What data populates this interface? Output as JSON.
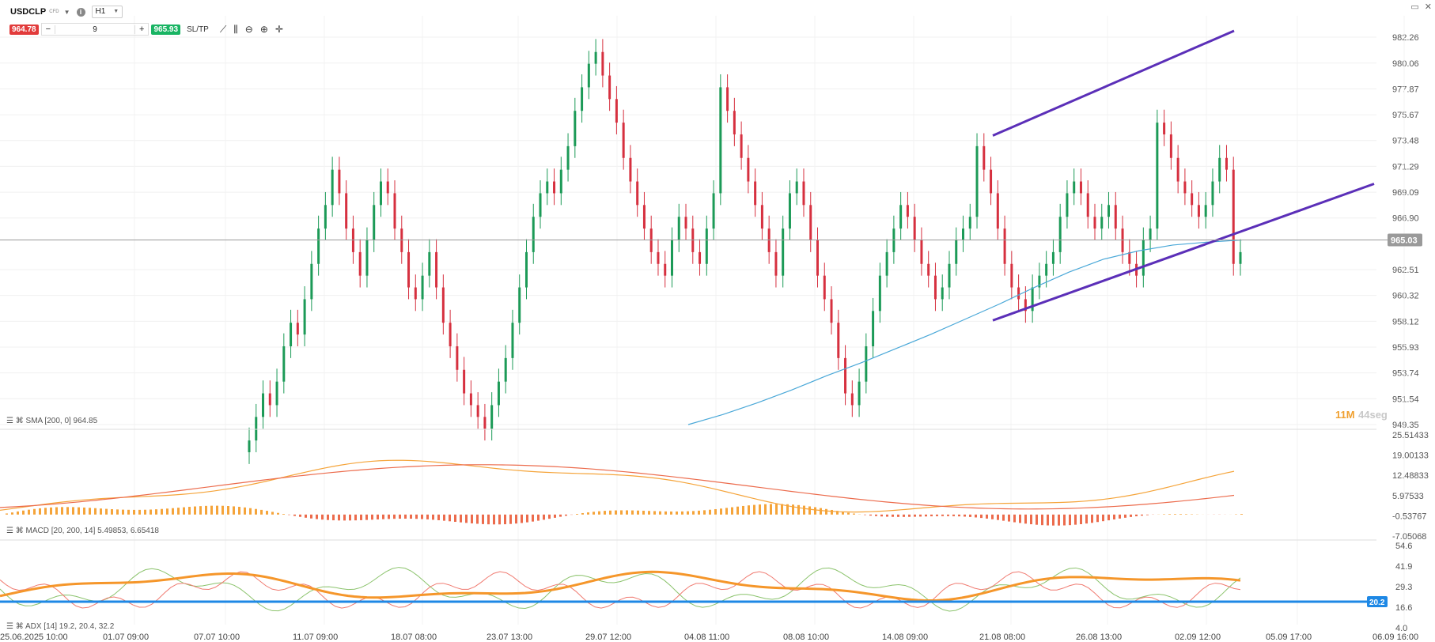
{
  "toolbar": {
    "symbol": "USDCLP",
    "badge": "CFD",
    "timeframe": "H1",
    "sell_price": "964.78",
    "quantity": "9",
    "buy_price": "965.93",
    "sltp_label": "SL/TP",
    "minus": "−",
    "plus": "+",
    "icons": [
      "info-icon",
      "line-chart-icon",
      "candles-icon",
      "zoom-out-icon",
      "zoom-in-icon",
      "crosshair-icon"
    ]
  },
  "window": {
    "minimize": "▭",
    "close": "✕"
  },
  "price_axis": {
    "labels": [
      "982.26",
      "980.06",
      "977.87",
      "975.67",
      "973.48",
      "971.29",
      "969.09",
      "966.90",
      "962.51",
      "960.32",
      "958.12",
      "955.93",
      "953.74",
      "951.54",
      "949.35"
    ],
    "values": [
      982.26,
      980.06,
      977.87,
      975.67,
      973.48,
      971.29,
      969.09,
      966.9,
      962.51,
      960.32,
      958.12,
      955.93,
      953.74,
      951.54,
      949.35
    ],
    "current_price": "965.03",
    "current_value": 965.03
  },
  "countdown": {
    "minutes": "11M",
    "seconds": "44seg"
  },
  "sma_label": "SMA [200, 0] 964.85",
  "macd": {
    "label": "MACD [20, 200, 14] 5.49853, 6.65418",
    "axis_labels": [
      "25.51433",
      "19.00133",
      "12.48833",
      "5.97533",
      "-0.53767",
      "-7.05068"
    ]
  },
  "adx": {
    "label": "ADX [14] 19.2, 20.4, 32.2",
    "axis_labels": [
      "54.6",
      "41.9",
      "29.3",
      "16.6",
      "4.0"
    ],
    "level_badge": "20.2"
  },
  "time_axis": [
    "25.06.2025 10:00",
    "01.07 09:00",
    "07.07 10:00",
    "11.07 09:00",
    "18.07 08:00",
    "23.07 13:00",
    "29.07 12:00",
    "04.08 11:00",
    "08.08 10:00",
    "14.08 09:00",
    "21.08 08:00",
    "26.08 13:00",
    "02.09 12:00",
    "05.09 17:00",
    "06.09 16:00"
  ],
  "chart_data": {
    "type": "candlestick",
    "series": [
      {
        "name": "USDCLP H1",
        "closes": [
          948,
          950,
          952,
          951,
          953,
          956,
          958,
          957,
          960,
          963,
          966,
          968,
          971,
          969,
          966,
          964,
          962,
          965,
          968,
          970,
          969,
          966,
          964,
          961,
          960,
          962,
          964,
          961,
          958,
          956,
          954,
          952,
          951,
          950,
          949,
          951,
          953,
          955,
          958,
          961,
          964,
          967,
          969,
          970,
          969,
          971,
          973,
          976,
          978,
          980,
          981,
          979,
          977,
          975,
          972,
          970,
          968,
          966,
          964,
          963,
          962,
          965,
          967,
          966,
          964,
          963,
          966,
          969,
          978,
          976,
          974,
          972,
          970,
          968,
          966,
          964,
          962,
          966,
          969,
          970,
          968,
          965,
          962,
          960,
          958,
          955,
          952,
          951,
          953,
          956,
          959,
          962,
          964,
          966,
          968,
          967,
          965,
          963,
          962,
          960,
          961,
          963,
          965,
          966,
          967,
          973,
          971,
          969,
          966,
          963,
          961,
          960,
          959,
          961,
          962,
          963,
          964,
          967,
          969,
          970,
          969,
          967,
          966,
          967,
          968,
          966,
          964,
          963,
          962,
          965,
          966,
          975,
          974,
          972,
          970,
          969,
          968,
          967,
          968,
          970,
          972,
          971,
          963,
          964
        ]
      }
    ],
    "sma200": [
      949.35,
      950.2,
      951.2,
      952.3,
      953.5,
      954.6,
      955.8,
      957.0,
      958.3,
      959.6,
      961.0,
      962.3,
      963.4,
      964.1,
      964.6,
      964.85,
      965.03
    ],
    "trendline_upper": [
      [
        0.53,
        973.9
      ],
      [
        0.86,
        982.8
      ]
    ],
    "trendline_lower": [
      [
        0.53,
        958.2
      ],
      [
        0.96,
        969.8
      ]
    ]
  }
}
